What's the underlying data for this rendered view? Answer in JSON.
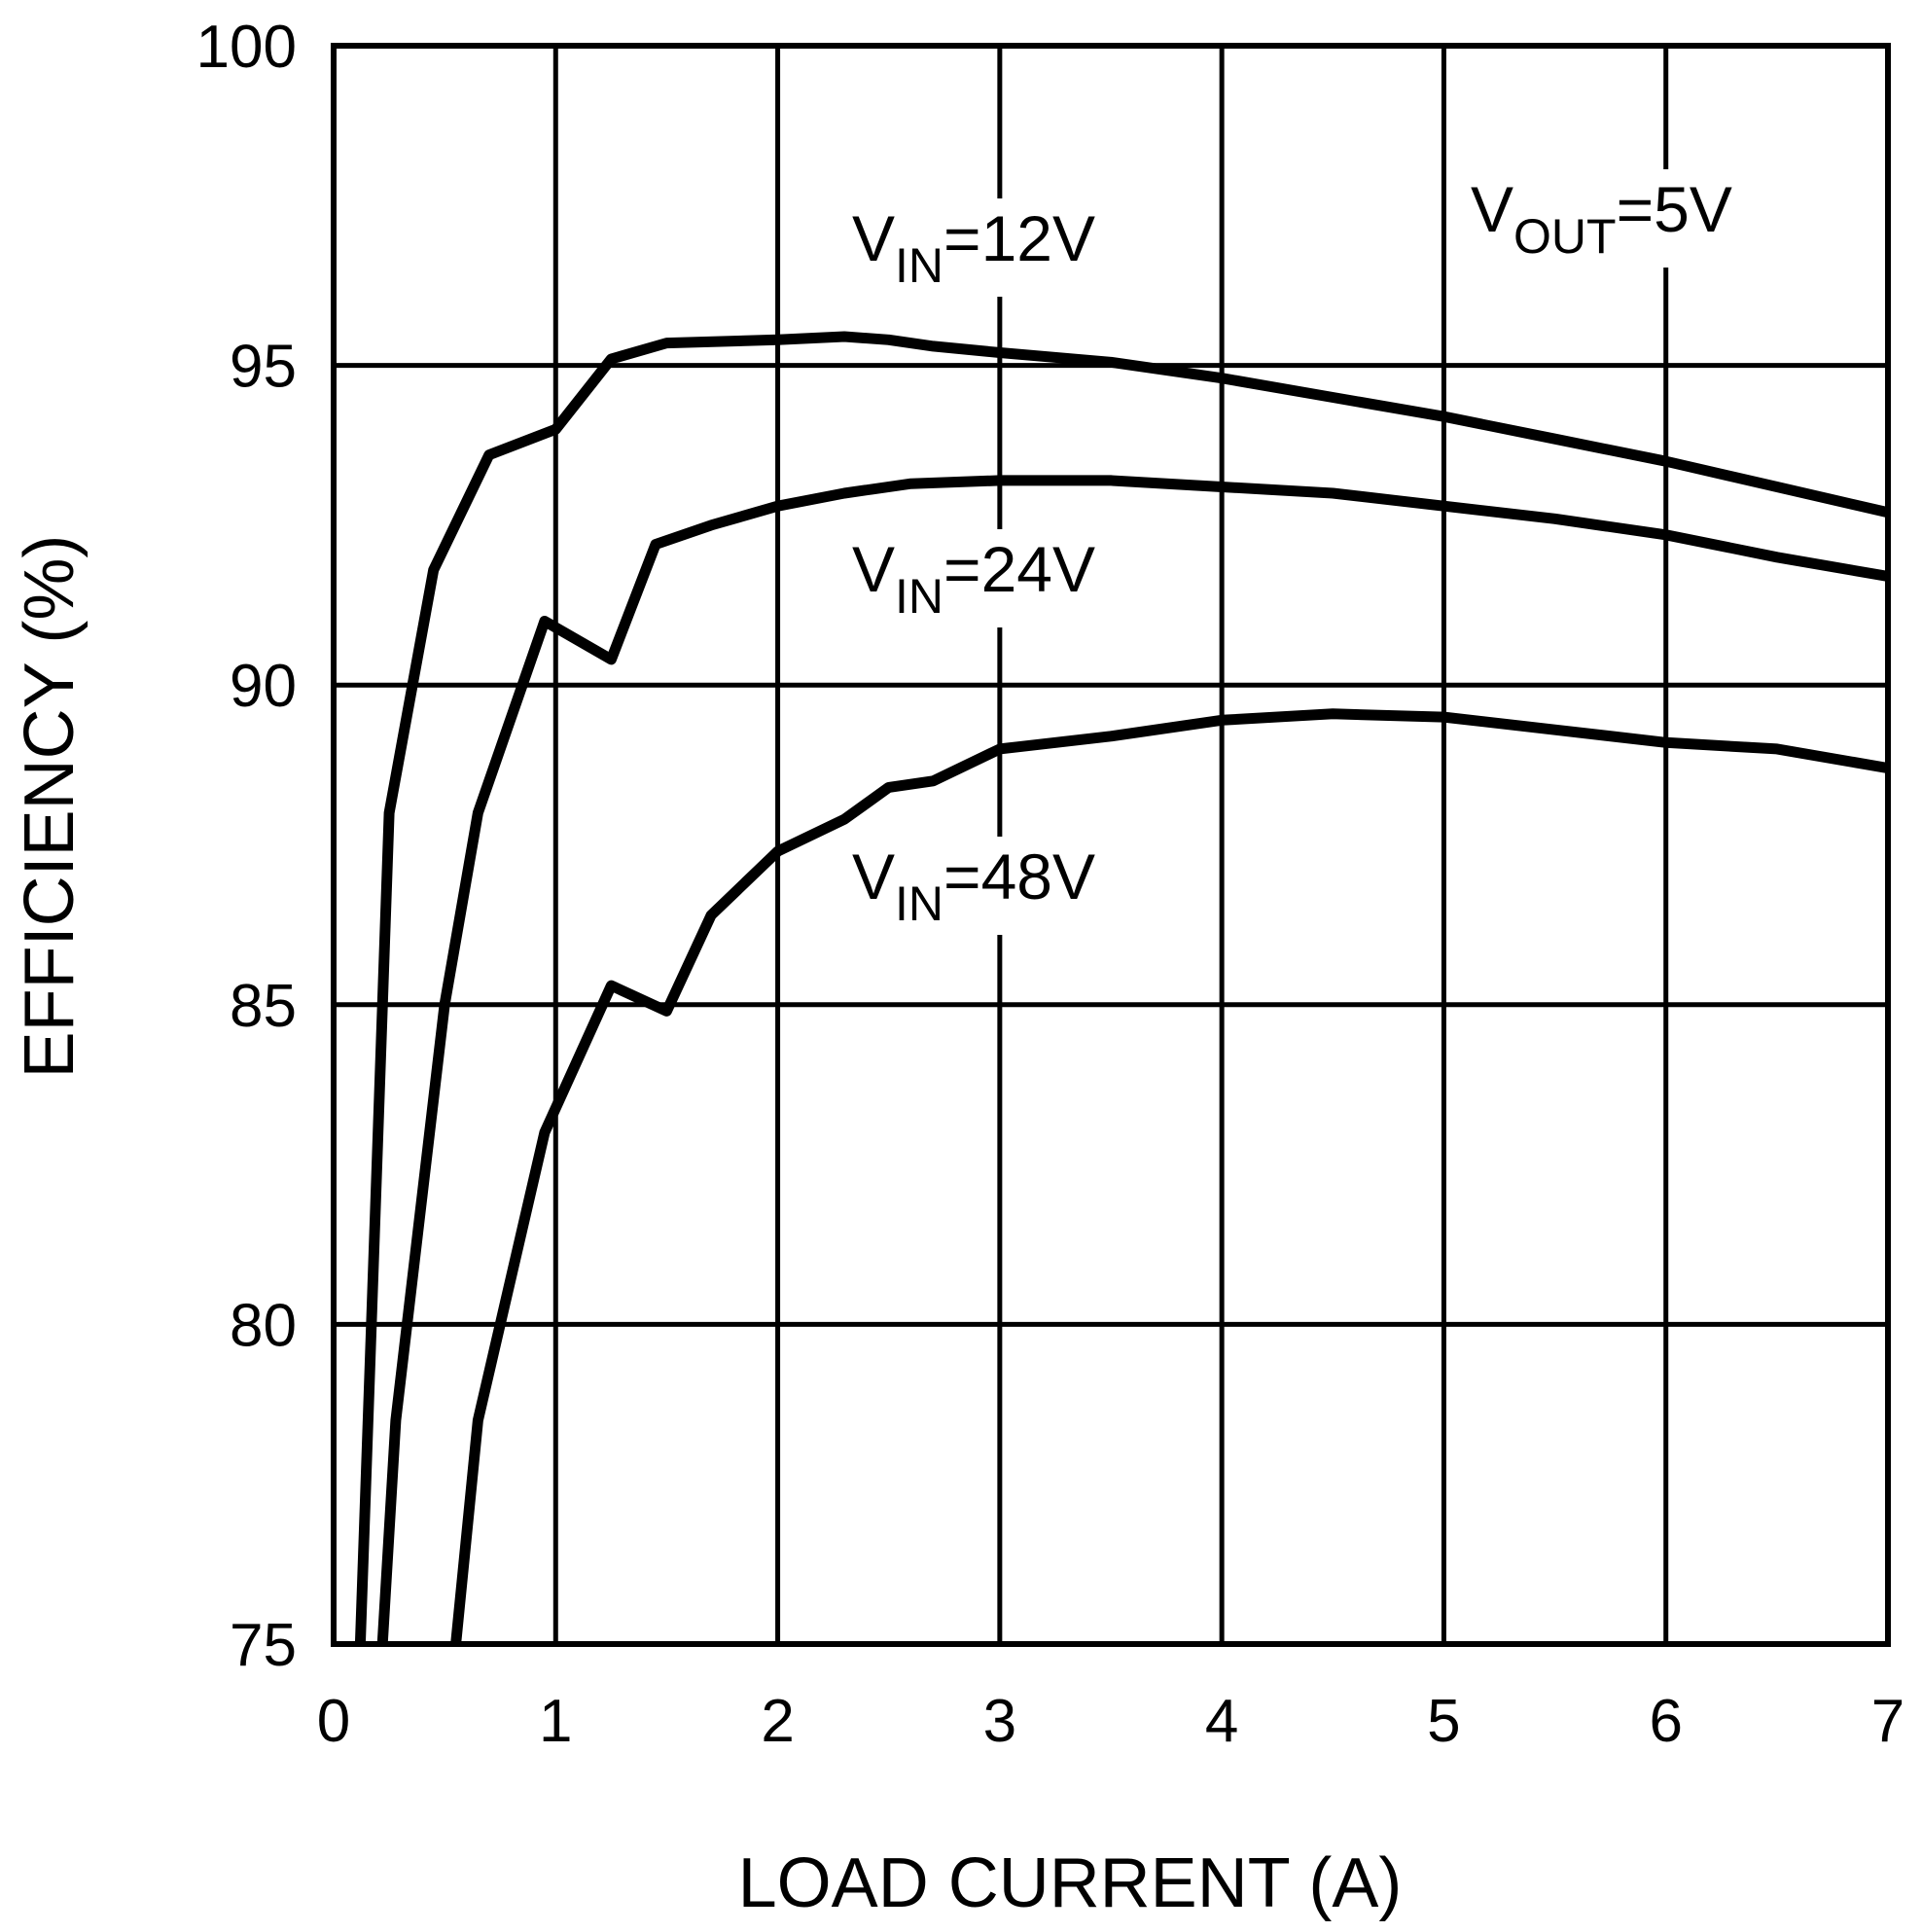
{
  "chart_data": {
    "type": "line",
    "title": "",
    "xlabel": "LOAD CURRENT (A)",
    "ylabel": "EFFICIENCY (%)",
    "xlim": [
      0,
      7
    ],
    "ylim": [
      75,
      100
    ],
    "xticks": [
      0,
      1,
      2,
      3,
      4,
      5,
      6,
      7
    ],
    "yticks": [
      75,
      80,
      85,
      90,
      95,
      100
    ],
    "xtick_labels": [
      "0",
      "1",
      "2",
      "3",
      "4",
      "5",
      "6",
      "7"
    ],
    "ytick_labels": [
      "75",
      "80",
      "85",
      "90",
      "95",
      "100"
    ],
    "grid": true,
    "legend": "none",
    "line_color": "#000000",
    "condition": {
      "base": "V",
      "sub": "OUT",
      "value": "=5V"
    },
    "series": [
      {
        "name": "VIN=12V",
        "label_base": "V",
        "label_sub": "IN",
        "label_value": "=12V",
        "x": [
          0.12,
          0.25,
          0.45,
          0.7,
          1.0,
          1.25,
          1.5,
          2.0,
          2.3,
          2.5,
          2.7,
          3.0,
          3.5,
          4.0,
          4.5,
          5.0,
          5.5,
          6.0,
          6.5,
          7.0
        ],
        "y": [
          75.0,
          88.0,
          91.8,
          93.6,
          94.0,
          95.1,
          95.35,
          95.4,
          95.45,
          95.4,
          95.3,
          95.2,
          95.05,
          94.8,
          94.5,
          94.2,
          93.85,
          93.5,
          93.1,
          92.7
        ]
      },
      {
        "name": "VIN=24V",
        "label_base": "V",
        "label_sub": "IN",
        "label_value": "=24V",
        "x": [
          0.22,
          0.28,
          0.5,
          0.65,
          0.95,
          1.25,
          1.45,
          1.7,
          2.0,
          2.3,
          2.6,
          3.0,
          3.5,
          4.0,
          4.5,
          5.0,
          5.5,
          6.0,
          6.5,
          7.0
        ],
        "y": [
          75.0,
          78.5,
          85.0,
          88.0,
          91.0,
          90.4,
          92.2,
          92.5,
          92.8,
          93.0,
          93.15,
          93.2,
          93.2,
          93.1,
          93.0,
          92.8,
          92.6,
          92.35,
          92.0,
          91.7
        ]
      },
      {
        "name": "VIN=48V",
        "label_base": "V",
        "label_sub": "IN",
        "label_value": "=48V",
        "x": [
          0.55,
          0.65,
          0.95,
          1.25,
          1.5,
          1.7,
          2.0,
          2.3,
          2.5,
          2.7,
          3.0,
          3.5,
          4.0,
          4.5,
          5.0,
          5.5,
          6.0,
          6.5,
          7.0
        ],
        "y": [
          75.0,
          78.5,
          83.0,
          85.3,
          84.9,
          86.4,
          87.4,
          87.9,
          88.4,
          88.5,
          89.0,
          89.2,
          89.45,
          89.55,
          89.5,
          89.3,
          89.1,
          89.0,
          88.7
        ]
      }
    ]
  }
}
